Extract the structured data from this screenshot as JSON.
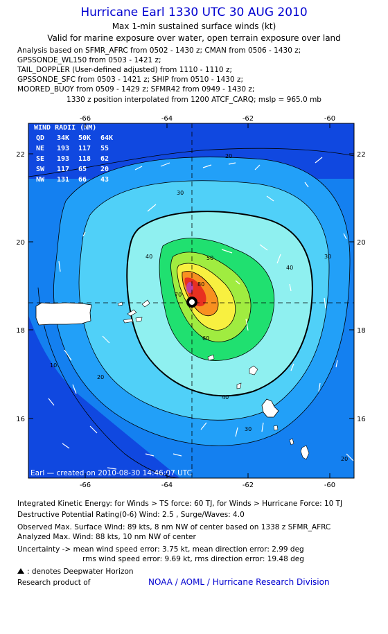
{
  "header": {
    "title": "Hurricane Earl 1330 UTC 30 AUG 2010",
    "subtitle1": "Max 1-min sustained surface winds (kt)",
    "subtitle2": "Valid for marine exposure over water, open terrain exposure over land"
  },
  "analysis_lines": [
    "Analysis based on SFMR_AFRC from 0502 - 1430 z; CMAN from 0506 - 1430 z;",
    "GPSSONDE_WL150 from 0503 - 1421 z;",
    "TAIL_DOPPLER (User-defined adjusted) from 1110 - 1110 z;",
    "GPSSONDE_SFC from 0503 - 1421 z; SHIP from 0510 - 1430 z;",
    "MOORED_BUOY from 0509 - 1429 z; SFMR42 from 0949 - 1430 z;"
  ],
  "position_line": "1330 z position interpolated from 1200 ATCF_CARQ; mslp = 965.0 mb",
  "map": {
    "lon_ticks": [
      "-66",
      "-64",
      "-62",
      "-60"
    ],
    "lat_ticks": [
      "22",
      "20",
      "18",
      "16"
    ],
    "center": {
      "lon": -63.4,
      "lat": 18.6
    },
    "wind_radii": {
      "title": "WIND RADII (NM)",
      "header": [
        "QD",
        "34K",
        "50K",
        "64K"
      ],
      "rows": [
        [
          "NE",
          "193",
          "117",
          "55"
        ],
        [
          "SE",
          "193",
          "118",
          "62"
        ],
        [
          "SW",
          "117",
          "65",
          "20"
        ],
        [
          "NW",
          "131",
          "66",
          "43"
        ]
      ]
    },
    "contour_labels": [
      "10",
      "20",
      "30",
      "40",
      "50",
      "60",
      "70",
      "80"
    ],
    "footer": "Earl — created on 2010-08-30 14:46:07 UTC",
    "colors": {
      "border": "#1040d8",
      "outer": "#1480f0",
      "light": "#40c8f8",
      "cyan": "#8ff0f0",
      "green": "#20e070",
      "yellow": "#f8f040",
      "orange": "#f89020",
      "red": "#e83020",
      "magenta": "#c040a0"
    }
  },
  "footer_lines": {
    "ike": "Integrated Kinetic Energy:  for Winds > TS force: 60 TJ,  for Winds > Hurricane Force: 10 TJ",
    "dpr": "Destructive Potential Rating(0-6)   Wind: 2.5 , Surge/Waves: 4.0",
    "obs": "Observed Max. Surface Wind: 89 kts, 8 nm NW of center based on 1338 z SFMR_AFRC",
    "ana": "Analyzed Max. Wind: 88 kts, 10 nm NW of center",
    "unc1": "Uncertainty -> mean wind speed error: 3.75 kt,   mean direction error: 2.99 deg",
    "unc2": "rms wind speed error: 9.69 kt,   rms direction error: 19.48 deg",
    "deepwater": ": denotes Deepwater Horizon",
    "research": "Research product of",
    "credit": "NOAA / AOML / Hurricane Research Division"
  }
}
